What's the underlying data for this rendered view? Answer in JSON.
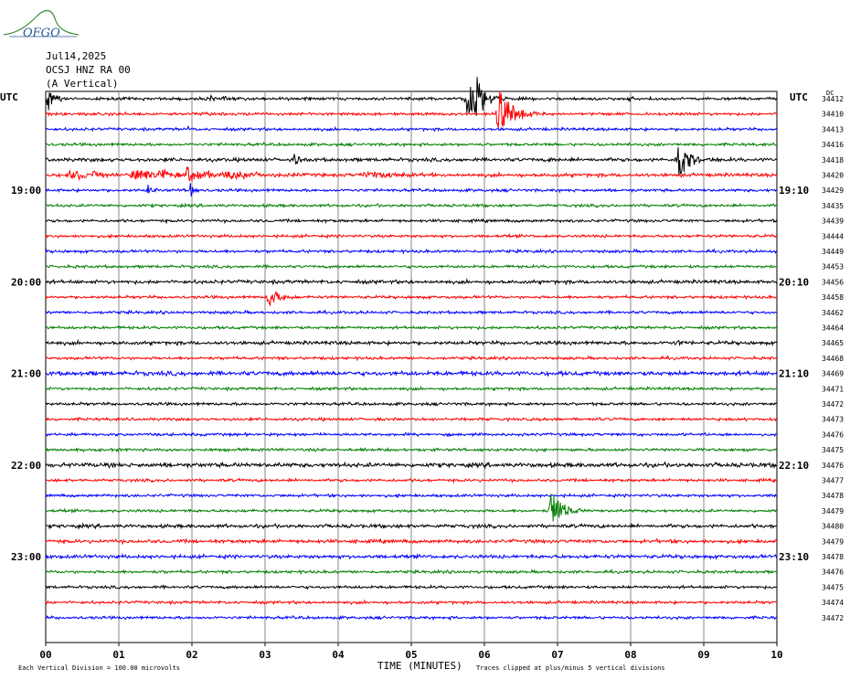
{
  "logo": {
    "text": "OFGO"
  },
  "header": {
    "date": "Jul14,2025",
    "station": "OCSJ HNZ RA 00",
    "component": "(A Vertical)"
  },
  "utc_label_left": "UTC",
  "utc_label_right": "UTC",
  "dc_label": "DC",
  "footer": {
    "xlabel": "TIME (MINUTES)",
    "division_note": "Each Vertical Division =  100.00 microvolts",
    "clip_note": "Traces clipped at plus/minus 5 vertical divisions"
  },
  "colors": {
    "black": "#000000",
    "red": "#ff0000",
    "blue": "#0000ff",
    "green": "#007f00",
    "grid": "#8a8a8a"
  },
  "chart_data": {
    "type": "helicorder",
    "xlabel": "TIME (MINUTES)",
    "xlim": [
      0,
      10
    ],
    "x_ticks": [
      "00",
      "01",
      "02",
      "03",
      "04",
      "05",
      "06",
      "07",
      "08",
      "09",
      "10"
    ],
    "line_minutes": 10,
    "color_cycle": [
      "black",
      "red",
      "blue",
      "green"
    ],
    "left_time_labels": [
      {
        "line": 6,
        "text": "19:00"
      },
      {
        "line": 12,
        "text": "20:00"
      },
      {
        "line": 18,
        "text": "21:00"
      },
      {
        "line": 24,
        "text": "22:00"
      },
      {
        "line": 30,
        "text": "23:00"
      }
    ],
    "right_time_labels": [
      {
        "line": 6,
        "text": "19:10"
      },
      {
        "line": 12,
        "text": "20:10"
      },
      {
        "line": 18,
        "text": "21:10"
      },
      {
        "line": 24,
        "text": "22:10"
      },
      {
        "line": 30,
        "text": "23:10"
      }
    ],
    "dc_offsets": [
      "34412",
      "34410",
      "34413",
      "34416",
      "34418",
      "34420",
      "34429",
      "34435",
      "34439",
      "34444",
      "34449",
      "34453",
      "34456",
      "34458",
      "34462",
      "34464",
      "34465",
      "34468",
      "34469",
      "34471",
      "34472",
      "34473",
      "34476",
      "34475",
      "34476",
      "34477",
      "34478",
      "34479",
      "34480",
      "34479",
      "34478",
      "34476",
      "34475",
      "34474",
      "34472"
    ],
    "line_noise": [
      1.2,
      1.2,
      1.2,
      1.2,
      1.5,
      1.5,
      1.2,
      1.2,
      1.2,
      1.2,
      1.2,
      1.2,
      1.5,
      1.2,
      1.2,
      1.2,
      1.5,
      1.2,
      1.8,
      1.2,
      1.2,
      1.2,
      1.2,
      1.2,
      1.8,
      1.2,
      1.2,
      1.2,
      1.5,
      1.5,
      1.5,
      1.2,
      1.2,
      1.2,
      1.2
    ],
    "events": [
      {
        "line": 0,
        "t": 0.05,
        "amp": 18,
        "dur": 0.08
      },
      {
        "line": 0,
        "t": 0.02,
        "amp": 10,
        "dur": 0.03
      },
      {
        "line": 0,
        "t": 2.25,
        "amp": 6,
        "dur": 0.05
      },
      {
        "line": 0,
        "t": 2.45,
        "amp": 5,
        "dur": 0.08
      },
      {
        "line": 0,
        "t": 5.78,
        "amp": 24,
        "dur": 0.18
      },
      {
        "line": 0,
        "t": 5.9,
        "amp": 14,
        "dur": 0.12
      },
      {
        "line": 0,
        "t": 8.0,
        "amp": 4,
        "dur": 0.06
      },
      {
        "line": 0,
        "t": 8.25,
        "amp": 4,
        "dur": 0.05
      },
      {
        "line": 1,
        "t": 6.2,
        "amp": 28,
        "dur": 0.18
      },
      {
        "line": 1,
        "t": 6.25,
        "amp": 14,
        "dur": 0.03
      },
      {
        "line": 2,
        "t": 1.95,
        "amp": 5,
        "dur": 0.03
      },
      {
        "line": 4,
        "t": 3.4,
        "amp": 9,
        "dur": 0.06
      },
      {
        "line": 4,
        "t": 6.9,
        "amp": 3,
        "dur": 0.05
      },
      {
        "line": 4,
        "t": 8.65,
        "amp": 24,
        "dur": 0.15
      },
      {
        "line": 4,
        "t": 9.1,
        "amp": 4,
        "dur": 0.06
      },
      {
        "line": 5,
        "t": 0.35,
        "amp": 5,
        "dur": 0.35
      },
      {
        "line": 5,
        "t": 0.65,
        "amp": 4,
        "dur": 0.05
      },
      {
        "line": 5,
        "t": 1.25,
        "amp": 6,
        "dur": 0.35
      },
      {
        "line": 5,
        "t": 1.55,
        "amp": 6,
        "dur": 0.25
      },
      {
        "line": 5,
        "t": 1.95,
        "amp": 10,
        "dur": 0.25
      },
      {
        "line": 5,
        "t": 2.5,
        "amp": 5,
        "dur": 0.45
      },
      {
        "line": 5,
        "t": 4.4,
        "amp": 5,
        "dur": 0.35
      },
      {
        "line": 6,
        "t": 1.4,
        "amp": 7,
        "dur": 0.05
      },
      {
        "line": 6,
        "t": 1.98,
        "amp": 9,
        "dur": 0.05
      },
      {
        "line": 6,
        "t": 7.15,
        "amp": 4,
        "dur": 0.03
      },
      {
        "line": 13,
        "t": 3.05,
        "amp": 12,
        "dur": 0.15
      },
      {
        "line": 16,
        "t": 8.6,
        "amp": 3,
        "dur": 0.15
      },
      {
        "line": 27,
        "t": 6.92,
        "amp": 20,
        "dur": 0.16
      }
    ]
  }
}
